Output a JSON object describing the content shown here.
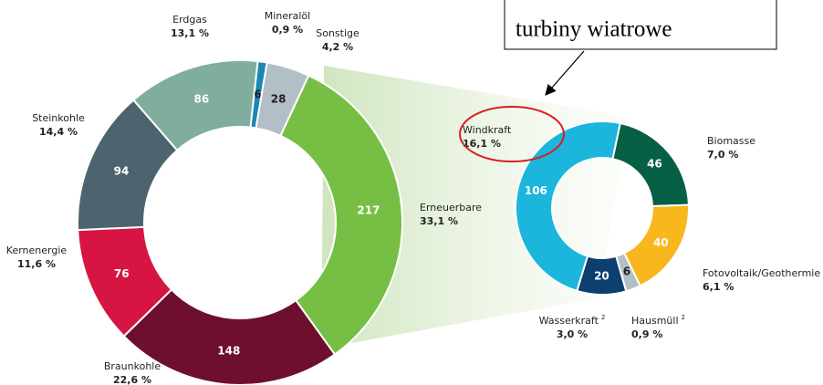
{
  "chart_data": [
    {
      "type": "donut",
      "categories": [
        "Erneuerbare",
        "Braunkohle",
        "Kernenergie",
        "Steinkohle",
        "Erdgas",
        "Mineralöl",
        "Sonstige"
      ],
      "values": [
        217,
        148,
        76,
        94,
        86,
        6,
        28
      ],
      "percent_labels": [
        "33,1 %",
        "22,6 %",
        "11,6 %",
        "14,4 %",
        "13,1 %",
        "0,9 %",
        "4,2 %"
      ],
      "colors": [
        "#76bf44",
        "#6d0f2d",
        "#d61543",
        "#4d636d",
        "#7fae9f",
        "#1a87b5",
        "#b3bfc6"
      ]
    },
    {
      "type": "donut",
      "categories": [
        "Biomasse",
        "Fotovoltaik/Geothermie",
        "Hausmüll",
        "Wasserkraft",
        "Windkraft"
      ],
      "category_notes": [
        null,
        null,
        "2",
        "2",
        null
      ],
      "values": [
        46,
        40,
        6,
        20,
        106
      ],
      "percent_labels": [
        "7,0 %",
        "6,1 %",
        "0,9 %",
        "3,0 %",
        "16,1 %"
      ],
      "colors": [
        "#075f45",
        "#f8b81d",
        "#b3bfc6",
        "#0c3f6e",
        "#1cb5dc"
      ]
    }
  ],
  "annotation": "turbiny wiatrowe"
}
